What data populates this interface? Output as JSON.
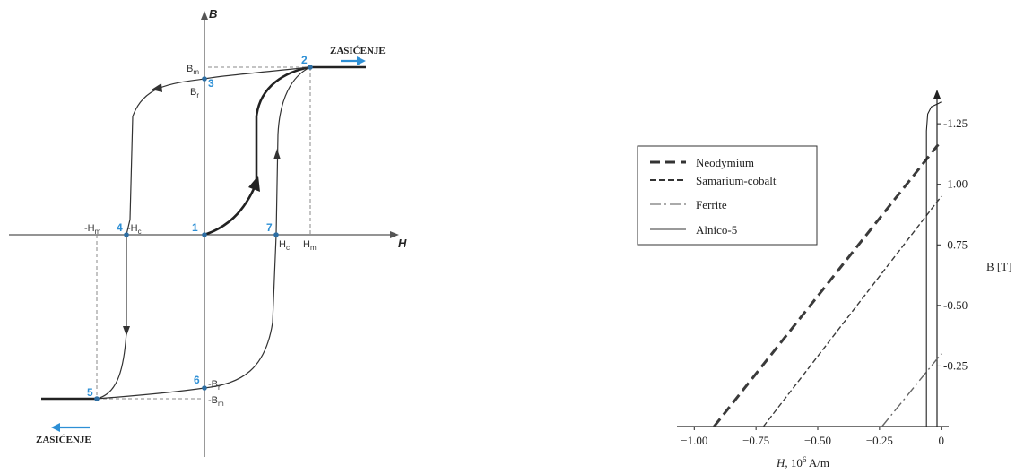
{
  "hysteresis": {
    "axis_h": "H",
    "axis_b": "B",
    "labels": {
      "bm": "B",
      "bm_sub": "m",
      "br": "B",
      "br_sub": "r",
      "neg_hm": "-H",
      "neg_hm_sub": "m",
      "neg_hc": "-H",
      "neg_hc_sub": "c",
      "hc": "H",
      "hc_sub": "c",
      "hm": "H",
      "hm_sub": "m",
      "neg_br": "-B",
      "neg_br_sub": "r",
      "neg_bm": "-B",
      "neg_bm_sub": "m"
    },
    "points": [
      "1",
      "2",
      "3",
      "4",
      "5",
      "6",
      "7"
    ],
    "saturation_right": "ZASIĆENJE",
    "saturation_left": "ZASIĆENJE",
    "colors": {
      "point_number": "#2d8fd5",
      "arrow": "#2d8fd5",
      "curve": "#333333"
    }
  },
  "chart_data": {
    "type": "line",
    "x_ticks": [
      "−1.00",
      "−0.75",
      "−0.50",
      "−0.25",
      "0"
    ],
    "y_ticks": [
      "0.25",
      "0.50",
      "0.75",
      "1.00",
      "1.25"
    ],
    "xlabel_italic": "H",
    "xlabel_rest": ", 10",
    "xlabel_exp": "6",
    "xlabel_unit": " A/m",
    "ylabel": "B [T]",
    "xlim": [
      -1.07,
      0.03
    ],
    "ylim": [
      0,
      1.38
    ],
    "legend_position": "top-left",
    "series": [
      {
        "name": "Neodymium",
        "style": "long-dash",
        "x": [
          -0.92,
          0.0
        ],
        "y": [
          0.0,
          1.18
        ]
      },
      {
        "name": "Samarium-cobalt",
        "style": "dash",
        "x": [
          -0.72,
          0.0
        ],
        "y": [
          0.0,
          0.95
        ]
      },
      {
        "name": "Ferrite",
        "style": "dash-dot",
        "x": [
          -0.24,
          0.0
        ],
        "y": [
          0.0,
          0.3
        ]
      },
      {
        "name": "Alnico-5",
        "style": "solid",
        "x": [
          -0.06,
          -0.06,
          -0.055,
          -0.04,
          -0.01,
          0.0
        ],
        "y": [
          0.0,
          1.22,
          1.29,
          1.32,
          1.335,
          1.34
        ]
      }
    ]
  }
}
